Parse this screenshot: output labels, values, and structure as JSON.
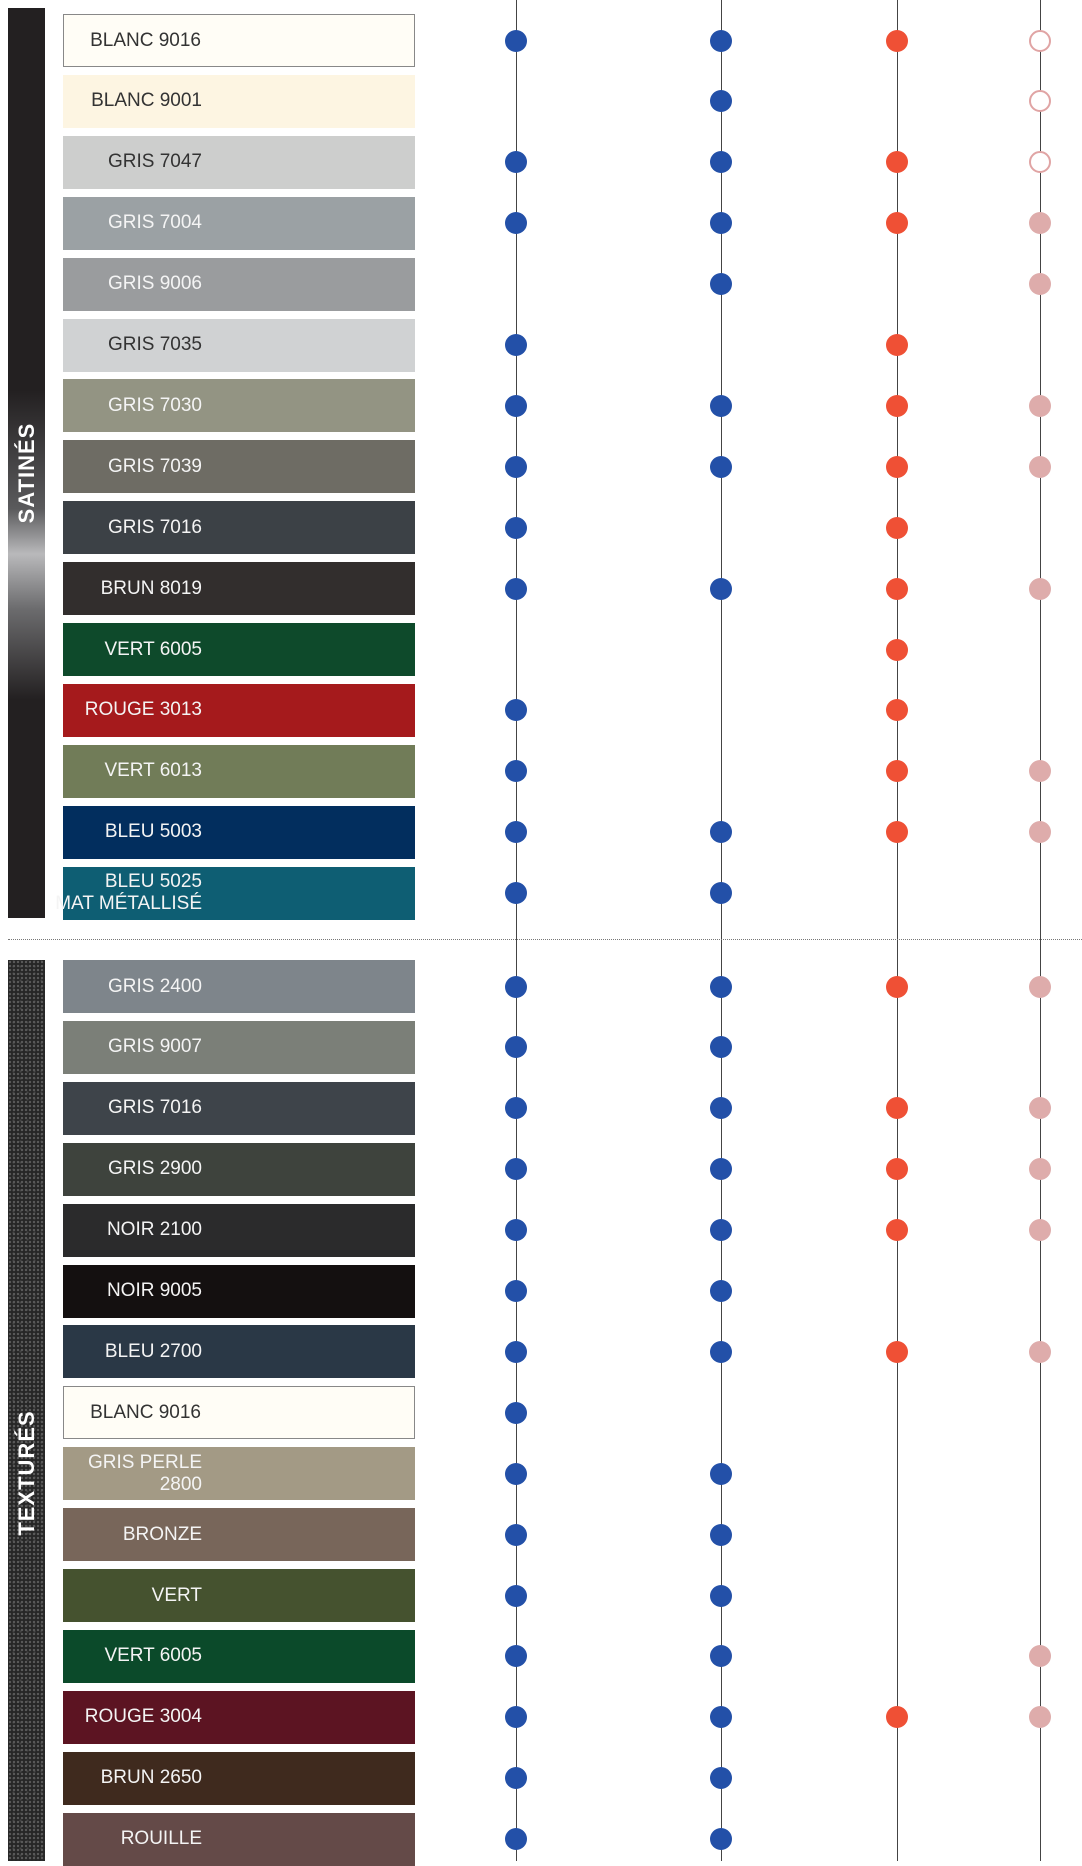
{
  "sections": [
    {
      "label": "SATINÉS",
      "swatches": [
        {
          "name": "BLANC 9016",
          "color": "#fffdf6",
          "text": "#333333",
          "border": "#888888",
          "marks": [
            1,
            1,
            1,
            2
          ]
        },
        {
          "name": "BLANC 9001",
          "color": "#fdf5e2",
          "text": "#333333",
          "marks": [
            0,
            1,
            0,
            2
          ]
        },
        {
          "name": "GRIS 7047",
          "color": "#cdcecd",
          "text": "#333333",
          "marks": [
            1,
            1,
            1,
            2
          ]
        },
        {
          "name": "GRIS 7004",
          "color": "#9ba1a4",
          "text": "#f4f4f4",
          "marks": [
            1,
            1,
            1,
            1
          ]
        },
        {
          "name": "GRIS 9006",
          "color": "#9a9c9e",
          "text": "#f4f4f4",
          "marks": [
            0,
            1,
            0,
            1
          ]
        },
        {
          "name": "GRIS 7035",
          "color": "#d0d2d3",
          "text": "#333333",
          "marks": [
            1,
            0,
            1,
            0
          ]
        },
        {
          "name": "GRIS 7030",
          "color": "#939483",
          "text": "#f4f4f4",
          "marks": [
            1,
            1,
            1,
            1
          ]
        },
        {
          "name": "GRIS 7039",
          "color": "#6e6c64",
          "text": "#f4f4f4",
          "marks": [
            1,
            1,
            1,
            1
          ]
        },
        {
          "name": "GRIS 7016",
          "color": "#3c4146",
          "text": "#f4f4f4",
          "marks": [
            1,
            0,
            1,
            0
          ]
        },
        {
          "name": "BRUN 8019",
          "color": "#322e2d",
          "text": "#f4f4f4",
          "marks": [
            1,
            1,
            1,
            1
          ]
        },
        {
          "name": "VERT 6005",
          "color": "#0e4a2b",
          "text": "#f4f4f4",
          "marks": [
            0,
            0,
            1,
            0
          ]
        },
        {
          "name": "ROUGE 3013",
          "color": "#a51a1c",
          "text": "#f4f4f4",
          "marks": [
            1,
            0,
            1,
            0
          ]
        },
        {
          "name": "VERT 6013",
          "color": "#717c58",
          "text": "#f4f4f4",
          "marks": [
            1,
            0,
            1,
            1
          ]
        },
        {
          "name": "BLEU 5003",
          "color": "#022e5e",
          "text": "#f4f4f4",
          "marks": [
            1,
            1,
            1,
            1
          ]
        },
        {
          "name": "BLEU 5025\nMAT MÉTALLISÉ",
          "color": "#0e5e73",
          "text": "#f4f4f4",
          "marks": [
            1,
            1,
            0,
            0
          ]
        }
      ]
    },
    {
      "label": "TEXTURÉS",
      "swatches": [
        {
          "name": "GRIS 2400",
          "color": "#7e858b",
          "text": "#f4f4f4",
          "marks": [
            1,
            1,
            1,
            1
          ]
        },
        {
          "name": "GRIS 9007",
          "color": "#7b7f78",
          "text": "#f4f4f4",
          "marks": [
            1,
            1,
            0,
            0
          ]
        },
        {
          "name": "GRIS 7016",
          "color": "#3e444a",
          "text": "#f4f4f4",
          "marks": [
            1,
            1,
            1,
            1
          ]
        },
        {
          "name": "GRIS 2900",
          "color": "#3e433d",
          "text": "#f4f4f4",
          "marks": [
            1,
            1,
            1,
            1
          ]
        },
        {
          "name": "NOIR 2100",
          "color": "#2b2b2c",
          "text": "#f4f4f4",
          "marks": [
            1,
            1,
            1,
            1
          ]
        },
        {
          "name": "NOIR 9005",
          "color": "#141010",
          "text": "#f4f4f4",
          "marks": [
            1,
            1,
            0,
            0
          ]
        },
        {
          "name": "BLEU 2700",
          "color": "#2a3846",
          "text": "#f4f4f4",
          "marks": [
            1,
            1,
            1,
            1
          ]
        },
        {
          "name": "BLANC 9016",
          "color": "#fffdf6",
          "text": "#333333",
          "border": "#888888",
          "marks": [
            1,
            0,
            0,
            0
          ]
        },
        {
          "name": "GRIS PERLE\n2800",
          "color": "#a39a85",
          "text": "#f4f4f4",
          "marks": [
            1,
            1,
            0,
            0
          ]
        },
        {
          "name": "BRONZE",
          "color": "#78665a",
          "text": "#f4f4f4",
          "marks": [
            1,
            1,
            0,
            0
          ]
        },
        {
          "name": "VERT",
          "color": "#45522f",
          "text": "#f4f4f4",
          "marks": [
            1,
            1,
            0,
            0
          ]
        },
        {
          "name": "VERT 6005",
          "color": "#0b4a2a",
          "text": "#f4f4f4",
          "marks": [
            1,
            1,
            0,
            1
          ]
        },
        {
          "name": "ROUGE 3004",
          "color": "#5c1422",
          "text": "#f4f4f4",
          "marks": [
            1,
            1,
            1,
            1
          ]
        },
        {
          "name": "BRUN 2650",
          "color": "#3f2a1e",
          "text": "#f4f4f4",
          "marks": [
            1,
            1,
            0,
            0
          ]
        },
        {
          "name": "ROUILLE",
          "color": "#644a48",
          "text": "#f4f4f4",
          "marks": [
            1,
            1,
            0,
            0
          ]
        }
      ]
    }
  ],
  "column_colors": [
    "#2350a8",
    "#2350a8",
    "#ef5035",
    "#deacab"
  ]
}
